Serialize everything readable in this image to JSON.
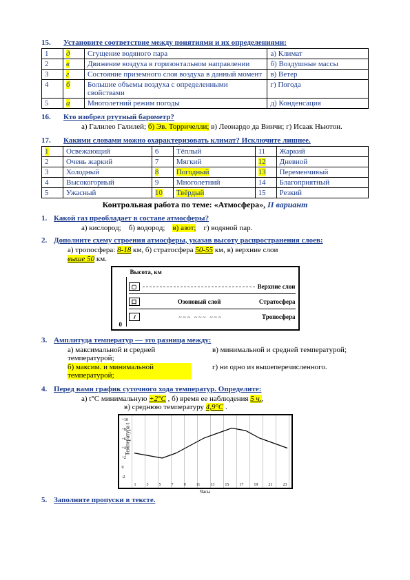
{
  "q15": {
    "num": "15.",
    "title": "Установите соответствие между понятиями и их определениями:",
    "rows": [
      {
        "n": "1",
        "letter": "д",
        "def": "Сгущение водяного пара",
        "right": "а) Климат"
      },
      {
        "n": "2",
        "letter": "в",
        "def": "Движение воздуха в горизонтальном направлении",
        "right": "б) Воздушные массы"
      },
      {
        "n": "3",
        "letter": "г",
        "def": "Состояние приземного слоя воздуха в данный момент",
        "right": "в) Ветер"
      },
      {
        "n": "4",
        "letter": "б",
        "def": "Большие объемы воздуха с определенными свойствами",
        "right": "г) Погода"
      },
      {
        "n": "5",
        "letter": "а",
        "def": "Многолетний режим погоды",
        "right": "д) Конденсация"
      }
    ]
  },
  "q16": {
    "num": "16.",
    "title": "Кто изобрел ртутный барометр?",
    "opts_a": "а) Галилео Галилей;",
    "opts_b": "б) Эв. Торричелли;",
    "opts_c": "в) Леонардо да Винчи;   г) Исаак Ньютон."
  },
  "q17": {
    "num": "17.",
    "title": "Какими словами можно охарактеризовать климат? Исключите лишнее.",
    "cells": [
      [
        "1",
        "Освежающий",
        "6",
        "Тёплый",
        "11",
        "Жаркий"
      ],
      [
        "2",
        "Очень жаркий",
        "7",
        "Мягкий",
        "12",
        "Дневной"
      ],
      [
        "3",
        "Холодный",
        "8",
        "Погодный",
        "13",
        "Переменчивый"
      ],
      [
        "4",
        "Высокогорный",
        "9",
        "Многолетний",
        "14",
        "Благоприятный"
      ],
      [
        "5",
        "Ужасный",
        "10",
        "Твёрдый",
        "15",
        "Резкий"
      ]
    ],
    "highlights": {
      "r0c0": true,
      "r2c2": true,
      "r2c3": true,
      "r4c2": true,
      "r4c3": true,
      "r1c4": true,
      "r2c4": true
    }
  },
  "section_title_a": "Контрольная работа по теме: «Атмосфера», ",
  "section_title_b": "II вариант",
  "q1": {
    "num": "1.",
    "title": "Какой газ преобладает в составе атмосферы?",
    "opt_a": "а) кислород;",
    "opt_b": "б) водород;",
    "opt_c": "в) азот;",
    "opt_d": "г) водяной пар."
  },
  "q2": {
    "num": "2.",
    "title": "Дополните схему строения атмосферы, указав высоту распространения слоев:",
    "line_a_pre": "а) тропосфера: ",
    "a_val": "8-18",
    "a_post": " км,   б) стратосфера ",
    "b_val": "50-55",
    "b_post": " км,   в) верхние слои ",
    "c_val": "выше 50",
    "c_post": " км.",
    "diagram": {
      "top": "Высота, км",
      "rows": [
        {
          "icon": "▢",
          "label": "Верхние слои"
        },
        {
          "icon": "口",
          "mid": "Озоновый слой",
          "label": "Стратосфера"
        },
        {
          "icon": "///",
          "label": "Тропосфера"
        }
      ],
      "zero": "0"
    }
  },
  "q3": {
    "num": "3.",
    "title": "Амплитуда температур — это разница между:",
    "a": "а) максимальной и средней температурой;",
    "b": "в) минимальной и средней температурой;",
    "c": "б) максим. и минимальной температурой;",
    "d": "г) ни одно из вышеперечисленного."
  },
  "q4": {
    "num": "4.",
    "title": "Перед вами график суточного хода температур. Определите:",
    "line": "а) t°С минимальную ",
    "v1": "+2°С",
    "sep1": " ,   б) время ее наблюдения ",
    "v2": "5 ч.",
    "sep2": ",",
    "line2": "в) среднюю температуру ",
    "v3": "4,9°С",
    "end": " .",
    "graph": {
      "ylabel": "Температура t",
      "xlabel": "Часы",
      "xticks": [
        "1",
        "3",
        "5",
        "7",
        "9",
        "11",
        "13",
        "15",
        "17",
        "19",
        "21",
        "23"
      ],
      "yticks": [
        "+10",
        "+8",
        "+6",
        "+4",
        "+2",
        "0",
        "-2"
      ],
      "data": [
        3,
        2.5,
        2,
        3,
        4.5,
        6,
        7,
        8,
        7.5,
        6,
        5,
        4
      ],
      "ymin": -2,
      "ymax": 10
    }
  },
  "q5": {
    "num": "5.",
    "title": "Заполните пропуски в тексте."
  }
}
